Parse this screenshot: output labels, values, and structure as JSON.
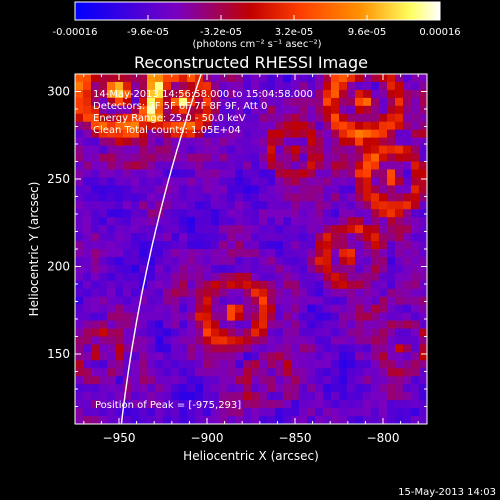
{
  "chart_data": {
    "type": "heatmap",
    "title": "Reconstructed RHESSI Image",
    "xlabel": "Heliocentric X (arcsec)",
    "ylabel": "Heliocentric Y (arcsec)",
    "xlim": [
      -975,
      -775
    ],
    "ylim": [
      110,
      310
    ],
    "xticks": [
      -950,
      -900,
      -850,
      -800
    ],
    "yticks": [
      150,
      200,
      250,
      300
    ],
    "colorbar": {
      "ticks": [
        "-0.00016",
        "-9.6e-05",
        "-3.2e-05",
        "3.2e-05",
        "9.6e-05",
        "0.00016"
      ],
      "units_label": "(photons cm⁻² s⁻¹ asec⁻²)",
      "range": [
        -0.00016,
        0.00016
      ],
      "colormap": [
        "#0000ff",
        "#7a00c0",
        "#c00000",
        "#ff4000",
        "#ff9000",
        "#ffff60",
        "#ffffff"
      ]
    },
    "annotations": [
      "14-May-2013 14:56:58.000 to 15:04:58.000",
      "Detectors: 3F 5F 6F 7F 8F 9F, Att 0",
      "Energy Range: 25.0 - 50.0 keV",
      "Clean     Total counts: 1.05E+04"
    ],
    "peak_label": "Position of Peak = [-975,293]",
    "peak_position": [
      -975,
      293
    ],
    "limb_color": "#ffffff"
  },
  "footer_timestamp": "15-May-2013 14:03"
}
